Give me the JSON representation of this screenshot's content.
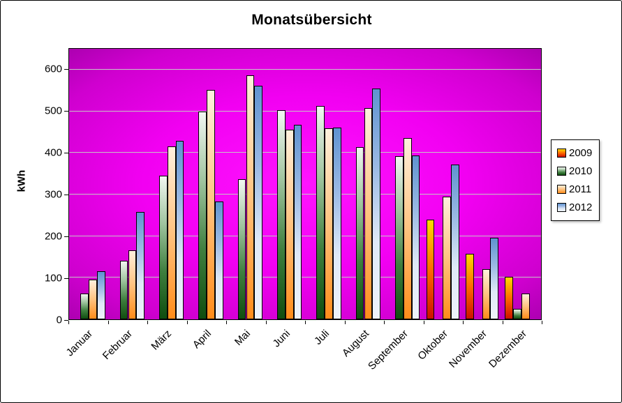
{
  "chart_data": {
    "type": "bar",
    "title": "Monatsübersicht",
    "xlabel": "",
    "ylabel": "kWh",
    "ylim": [
      0,
      650
    ],
    "yticks": [
      0,
      100,
      200,
      300,
      400,
      500,
      600
    ],
    "grid": true,
    "legend_position": "right",
    "plot_background": {
      "type": "radial",
      "center_color": "#ff14ff",
      "edge_color": "#6f0076"
    },
    "gridline_color": "#c6c6c6",
    "categories": [
      "Januar",
      "Februar",
      "März",
      "April",
      "Mai",
      "Juni",
      "Juli",
      "August",
      "September",
      "Oktober",
      "November",
      "Dezember"
    ],
    "series": [
      {
        "name": "2009",
        "gradient": {
          "direction": "to top",
          "stops": [
            "#cc1100",
            "#ff6a00",
            "#ffd900"
          ]
        },
        "values": [
          null,
          null,
          null,
          null,
          null,
          null,
          null,
          null,
          null,
          240,
          157,
          102
        ]
      },
      {
        "name": "2010",
        "gradient": {
          "direction": "to top",
          "stops": [
            "#0f4d0f",
            "#3f7f3f",
            "#9fc49f",
            "#f2f7f2"
          ]
        },
        "values": [
          62,
          140,
          345,
          500,
          337,
          502,
          513,
          414,
          392,
          null,
          null,
          25
        ]
      },
      {
        "name": "2011",
        "gradient": {
          "direction": "to top",
          "stops": [
            "#ff8c1a",
            "#ffc380",
            "#fff0dd"
          ]
        },
        "values": [
          95,
          166,
          415,
          551,
          586,
          455,
          459,
          507,
          436,
          295,
          121,
          62
        ]
      },
      {
        "name": "2012",
        "gradient": {
          "direction": "to bottom",
          "stops": [
            "#5f93d0",
            "#9ab9e4",
            "#dfe9f7",
            "#eef3fb"
          ]
        },
        "values": [
          116,
          258,
          429,
          283,
          561,
          467,
          461,
          554,
          394,
          372,
          196,
          null
        ]
      }
    ]
  }
}
